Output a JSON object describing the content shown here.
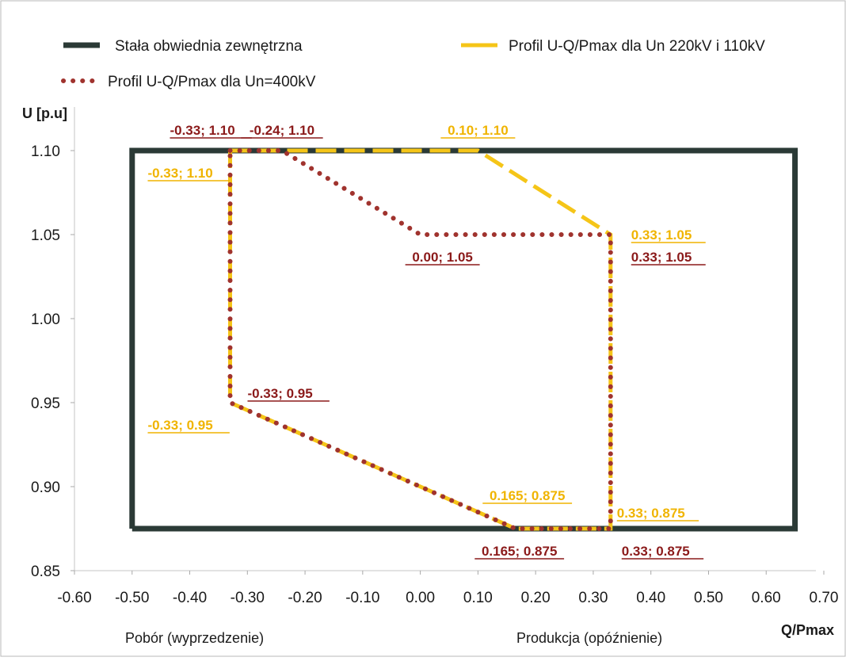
{
  "chart_data": {
    "type": "line",
    "ylabel": "U [p.u]",
    "xlabel": "Q/Pmax",
    "left_caption": "Pobór (wyprzedzenie)",
    "right_caption": "Produkcja (opóźnienie)",
    "xlim": [
      -0.6,
      0.7
    ],
    "ylim": [
      0.85,
      1.1
    ],
    "x_ticks": [
      "-0.60",
      "-0.50",
      "-0.40",
      "-0.30",
      "-0.20",
      "-0.10",
      "0.00",
      "0.10",
      "0.20",
      "0.30",
      "0.40",
      "0.50",
      "0.60",
      "0.70"
    ],
    "y_ticks": [
      "0.85",
      "0.90",
      "0.95",
      "1.00",
      "1.05",
      "1.10"
    ],
    "grid": false,
    "legend_position": "top",
    "series": [
      {
        "name": "Stała obwiednia zewnętrzna",
        "style": "solid",
        "color": "#2b3a36",
        "x": [
          -0.5,
          -0.5,
          0.65,
          0.65,
          -0.5
        ],
        "y": [
          0.875,
          1.1,
          1.1,
          0.875,
          0.875
        ]
      },
      {
        "name": "Profil U-Q/Pmax dla Un 220kV i 110kV",
        "style": "dashed",
        "color": "#f5c518",
        "x": [
          -0.33,
          0.1,
          0.33,
          0.33,
          0.165,
          -0.33,
          -0.33
        ],
        "y": [
          1.1,
          1.1,
          1.05,
          0.875,
          0.875,
          0.95,
          1.1
        ]
      },
      {
        "name": "Profil U-Q/Pmax dla Un=400kV",
        "style": "dotted",
        "color": "#a0332e",
        "x": [
          -0.33,
          -0.24,
          0.0,
          0.33,
          0.33,
          0.165,
          -0.33,
          -0.33
        ],
        "y": [
          1.1,
          1.1,
          1.05,
          1.05,
          0.875,
          0.875,
          0.95,
          1.1
        ]
      }
    ],
    "annotations": [
      {
        "text": "-0.33; 1.10",
        "x": -0.33,
        "y": 1.1,
        "color": "#8b1a1a",
        "anchor": "above-left"
      },
      {
        "text": "-0.24; 1.10",
        "x": -0.24,
        "y": 1.1,
        "color": "#8b1a1a",
        "anchor": "above"
      },
      {
        "text": "0.10; 1.10",
        "x": 0.1,
        "y": 1.1,
        "color": "#f0b400",
        "anchor": "above"
      },
      {
        "text": "-0.33; 1.10",
        "x": -0.33,
        "y": 1.1,
        "color": "#f0b400",
        "anchor": "below-left"
      },
      {
        "text": "0.00; 1.05",
        "x": 0.0,
        "y": 1.05,
        "color": "#8b1a1a",
        "anchor": "below"
      },
      {
        "text": "0.33; 1.05",
        "x": 0.33,
        "y": 1.05,
        "color": "#f0b400",
        "anchor": "right-up"
      },
      {
        "text": "0.33; 1.05",
        "x": 0.33,
        "y": 1.05,
        "color": "#8b1a1a",
        "anchor": "right-down"
      },
      {
        "text": "-0.33; 0.95",
        "x": -0.33,
        "y": 0.95,
        "color": "#8b1a1a",
        "anchor": "right-up"
      },
      {
        "text": "-0.33; 0.95",
        "x": -0.33,
        "y": 0.95,
        "color": "#f0b400",
        "anchor": "below-left"
      },
      {
        "text": "0.165; 0.875",
        "x": 0.165,
        "y": 0.875,
        "color": "#f0b400",
        "anchor": "above"
      },
      {
        "text": "0.33; 0.875",
        "x": 0.33,
        "y": 0.875,
        "color": "#f0b400",
        "anchor": "right-up"
      },
      {
        "text": "0.165; 0.875",
        "x": 0.165,
        "y": 0.875,
        "color": "#8b1a1a",
        "anchor": "below"
      },
      {
        "text": "0.33; 0.875",
        "x": 0.33,
        "y": 0.875,
        "color": "#8b1a1a",
        "anchor": "right-down"
      }
    ]
  }
}
